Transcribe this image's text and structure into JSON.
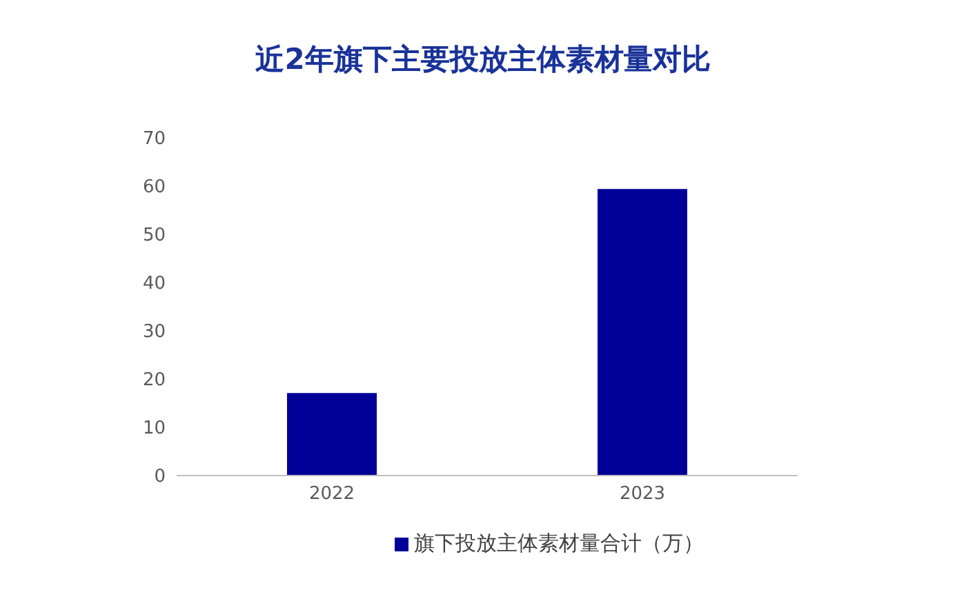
{
  "chart_data": {
    "type": "bar",
    "title": "近2年旗下主要投放主体素材量对比",
    "categories": [
      "2022",
      "2023"
    ],
    "series": [
      {
        "name": "旗下投放主体素材量合计（万）",
        "color": "#000099",
        "values": [
          17.1,
          59.4
        ]
      }
    ],
    "ylim": [
      0,
      70
    ],
    "yticks": [
      0,
      10,
      20,
      30,
      40,
      50,
      60,
      70
    ],
    "grid": false,
    "legend": "bottom"
  }
}
